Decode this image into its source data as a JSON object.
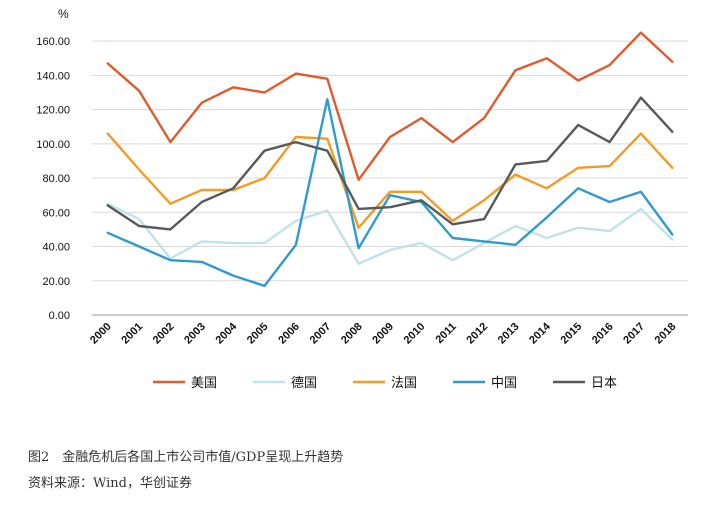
{
  "chart_data": {
    "type": "line",
    "title": "",
    "ylabel": "%",
    "xlabel": "",
    "ylim": [
      0,
      170
    ],
    "yticks": [
      "0.00",
      "20.00",
      "40.00",
      "60.00",
      "80.00",
      "100.00",
      "120.00",
      "140.00",
      "160.00"
    ],
    "categories": [
      "2000",
      "2001",
      "2002",
      "2003",
      "2004",
      "2005",
      "2006",
      "2007",
      "2008",
      "2009",
      "2010",
      "2011",
      "2012",
      "2013",
      "2014",
      "2015",
      "2016",
      "2017",
      "2018"
    ],
    "grid": "horizontal",
    "legend_position": "bottom",
    "series": [
      {
        "name": "美国",
        "color": "#E05A2B",
        "values": [
          147,
          131,
          101,
          124,
          133,
          130,
          141,
          138,
          79,
          104,
          115,
          101,
          115,
          143,
          150,
          137,
          146,
          165,
          148
        ]
      },
      {
        "name": "德国",
        "color": "#BFE3EA",
        "values": [
          65,
          56,
          33,
          43,
          42,
          42,
          55,
          61,
          30,
          38,
          42,
          32,
          42,
          52,
          45,
          51,
          49,
          62,
          44
        ]
      },
      {
        "name": "法国",
        "color": "#F39B23",
        "values": [
          106,
          85,
          65,
          73,
          73,
          80,
          104,
          103,
          51,
          72,
          72,
          55,
          67,
          82,
          74,
          86,
          87,
          106,
          86
        ]
      },
      {
        "name": "中国",
        "color": "#2E9BCD",
        "values": [
          48,
          40,
          32,
          31,
          23,
          17,
          41,
          126,
          39,
          70,
          66,
          45,
          43,
          41,
          57,
          74,
          66,
          72,
          47
        ]
      },
      {
        "name": "日本",
        "color": "#595959",
        "values": [
          64,
          52,
          50,
          66,
          74,
          96,
          101,
          96,
          62,
          63,
          67,
          53,
          56,
          88,
          90,
          111,
          101,
          127,
          107
        ]
      }
    ]
  },
  "caption": {
    "figure_label": "图2　金融危机后各国上市公司市值/GDP呈现上升趋势",
    "source": "资料来源：Wind，华创证券"
  }
}
